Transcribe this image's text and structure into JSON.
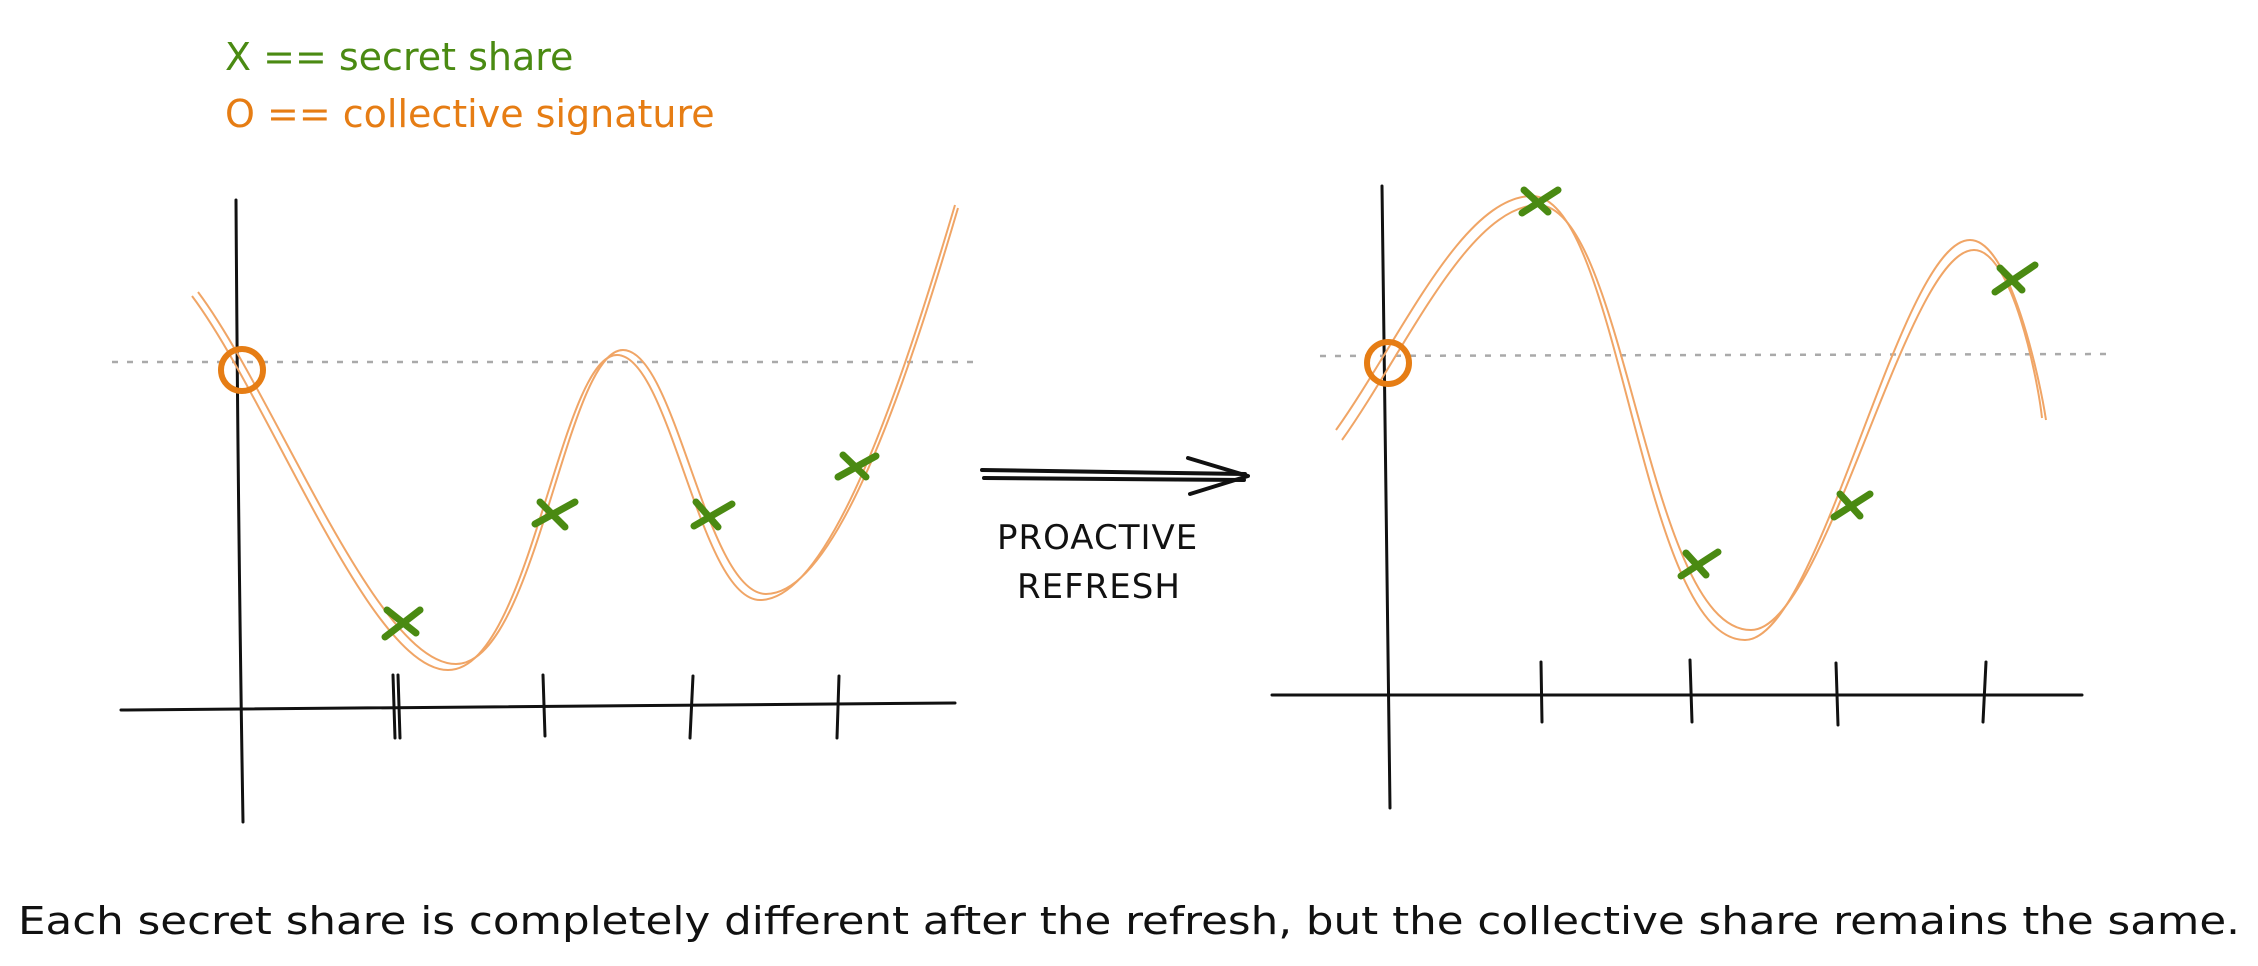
{
  "legend": {
    "share_label": "X == secret share",
    "signature_label": "O == collective signature",
    "share_color": "#4a8a12",
    "signature_color": "#e67d14"
  },
  "arrow": {
    "label_line1": "PROACTIVE",
    "label_line2": "REFRESH"
  },
  "caption": "Each secret share is completely different after the refresh, but the collective share remains the same."
}
